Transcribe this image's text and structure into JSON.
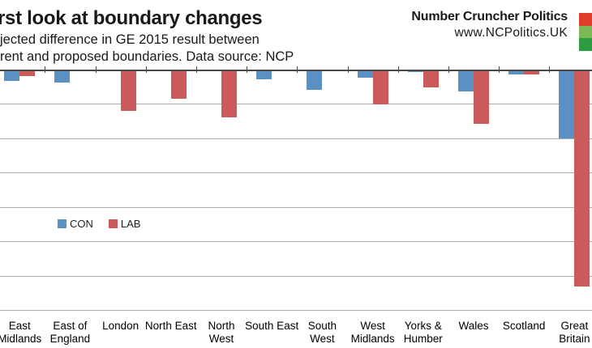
{
  "header": {
    "title": "rst look at boundary changes",
    "subtitle_line1": "jected difference in GE 2015 result between",
    "subtitle_line2": "rent and proposed boundaries. Data source: NCP",
    "brand_name": "Number Cruncher Politics",
    "brand_url": "www.NCPolitics.UK"
  },
  "colors": {
    "con": "#5B90C3",
    "lab": "#CB5B5B",
    "gridline": "#ABABAB",
    "axis": "#4a4a4a",
    "logo_red": "#E23C2D",
    "logo_light_green": "#7DB857",
    "logo_dark_green": "#2E9C41"
  },
  "legend": {
    "items": [
      {
        "label": "CON",
        "color_key": "con"
      },
      {
        "label": "LAB",
        "color_key": "lab"
      }
    ]
  },
  "chart_data": {
    "type": "bar",
    "title": "rst look at boundary changes",
    "subtitle": "jected difference in GE 2015 result between / rent and proposed boundaries. Data source: NCP",
    "categories": [
      "East Midlands",
      "East of England",
      "London",
      "North East",
      "North West",
      "South East",
      "South West",
      "West Midlands",
      "Yorks & Humber",
      "Wales",
      "Scotland",
      "Great Britain"
    ],
    "category_label_lines": [
      [
        "East",
        "Midlands"
      ],
      [
        "East of",
        "England"
      ],
      [
        "London"
      ],
      [
        "North East"
      ],
      [
        "North",
        "West"
      ],
      [
        "South East"
      ],
      [
        "South",
        "West"
      ],
      [
        "West",
        "Midlands"
      ],
      [
        "Yorks &",
        "Humber"
      ],
      [
        "Wales"
      ],
      [
        "Scotland"
      ],
      [
        "Great",
        "Britain"
      ]
    ],
    "series": [
      {
        "name": "CON",
        "values": [
          -1.6,
          -1.8,
          0,
          0,
          0,
          -1.3,
          -2.9,
          -1.1,
          -0.3,
          -3.1,
          -0.7,
          -9.9
        ]
      },
      {
        "name": "LAB",
        "values": [
          -0.9,
          0,
          -6.0,
          -4.2,
          -6.9,
          0,
          0,
          -5.0,
          -2.5,
          -7.8,
          -0.7,
          -31.5
        ]
      }
    ],
    "xlabel": "",
    "ylabel": "",
    "ylim": [
      -35,
      0
    ],
    "gridline_step": 5,
    "grid": "on",
    "y_axis_tick_labels_visible": false,
    "legend_position": "middle-left",
    "legend_entries": [
      "CON",
      "LAB"
    ]
  }
}
